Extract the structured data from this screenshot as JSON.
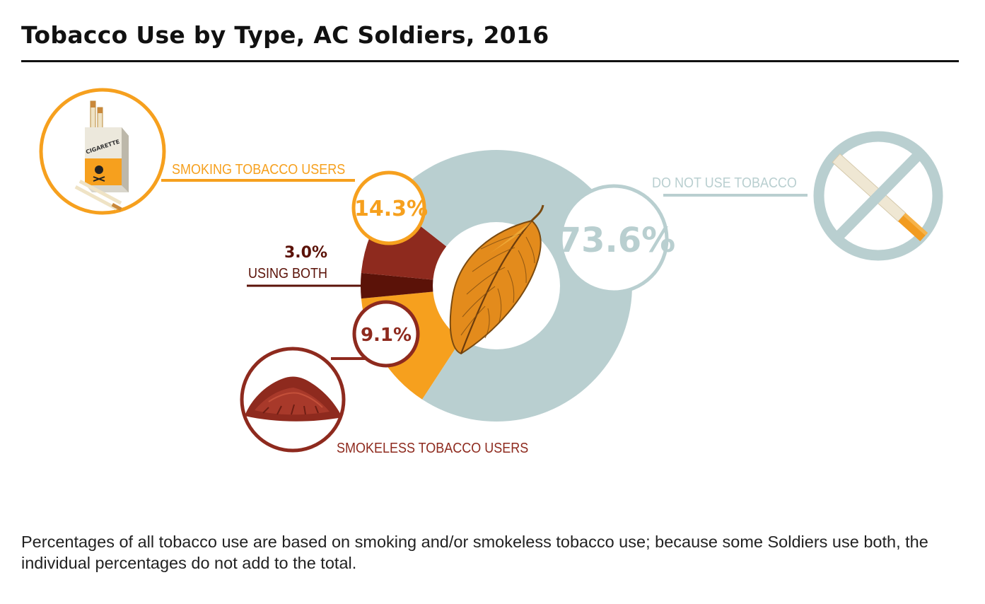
{
  "title": "Tobacco Use by Type, AC Soldiers, 2016",
  "footnote": "Percentages of all tobacco use are based on smoking and/or smokeless tobacco use; because some Soldiers use both, the individual percentages do not add to the total.",
  "colors": {
    "smoking": "#F6A01E",
    "both": "#5B1208",
    "smokeless": "#8E2A1E",
    "none": "#B9CFD0"
  },
  "icons": [
    "cigarette-pack-icon",
    "tobacco-leaf-icon",
    "no-smoking-icon",
    "loose-tobacco-icon"
  ],
  "chart_data": {
    "type": "pie",
    "style": "donut",
    "slices": [
      {
        "name": "SMOKING TOBACCO USERS",
        "value": 14.3,
        "label": "14.3%",
        "color": "#F6A01E"
      },
      {
        "name": "USING BOTH",
        "value": 3.0,
        "label": "3.0%",
        "color": "#5B1208"
      },
      {
        "name": "SMOKELESS TOBACCO USERS",
        "value": 9.1,
        "label": "9.1%",
        "color": "#8E2A1E"
      },
      {
        "name": "DO NOT USE TOBACCO",
        "value": 73.6,
        "label": "73.6%",
        "color": "#B9CFD0"
      }
    ]
  }
}
